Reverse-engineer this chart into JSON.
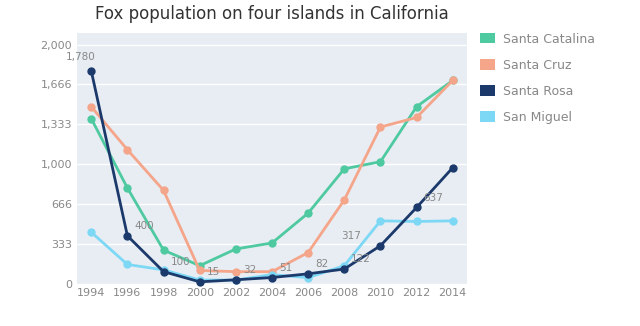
{
  "title": "Fox population on four islands in California",
  "years": [
    1994,
    1996,
    1998,
    2000,
    2002,
    2004,
    2006,
    2008,
    2010,
    2012,
    2014
  ],
  "santa_catalina": [
    1380,
    800,
    280,
    150,
    290,
    340,
    590,
    960,
    1020,
    1480,
    1700
  ],
  "santa_cruz": [
    1480,
    1120,
    780,
    110,
    100,
    100,
    260,
    700,
    1310,
    1390,
    1700
  ],
  "santa_rosa": [
    1780,
    400,
    100,
    15,
    32,
    51,
    82,
    122,
    317,
    637,
    970
  ],
  "san_miguel": [
    430,
    160,
    115,
    30,
    30,
    75,
    50,
    150,
    525,
    520,
    525
  ],
  "colors": {
    "santa_catalina": "#4ec9a0",
    "santa_cruz": "#f4a58a",
    "santa_rosa": "#1b3a6b",
    "san_miguel": "#7dd8f5"
  },
  "annot_rosa": [
    [
      1994,
      1780,
      "1,780",
      -18,
      8
    ],
    [
      1996,
      400,
      "400",
      5,
      5
    ],
    [
      1998,
      100,
      "100",
      5,
      5
    ],
    [
      2000,
      15,
      "15",
      5,
      5
    ],
    [
      2002,
      32,
      "32",
      5,
      5
    ],
    [
      2004,
      51,
      "51",
      5,
      5
    ],
    [
      2006,
      82,
      "82",
      5,
      5
    ],
    [
      2008,
      122,
      "122",
      5,
      5
    ],
    [
      2010,
      317,
      "317",
      -28,
      5
    ],
    [
      2012,
      637,
      "637",
      5,
      5
    ]
  ],
  "ylim": [
    0,
    2100
  ],
  "yticks": [
    0,
    333,
    666,
    1000,
    1333,
    1666,
    2000
  ],
  "ytick_labels": [
    "0",
    "333",
    "666",
    "1,000",
    "1,333",
    "1,666",
    "2,000"
  ],
  "bg_color": "#ffffff",
  "plot_bg_color": "#e8edf3",
  "grid_color": "#ffffff",
  "tick_color": "#888888",
  "title_color": "#333333",
  "annot_color": "#888888",
  "legend_labels": [
    "Santa Catalina",
    "Santa Cruz",
    "Santa Rosa",
    "San Miguel"
  ],
  "legend_keys": [
    "santa_catalina",
    "santa_cruz",
    "santa_rosa",
    "san_miguel"
  ]
}
